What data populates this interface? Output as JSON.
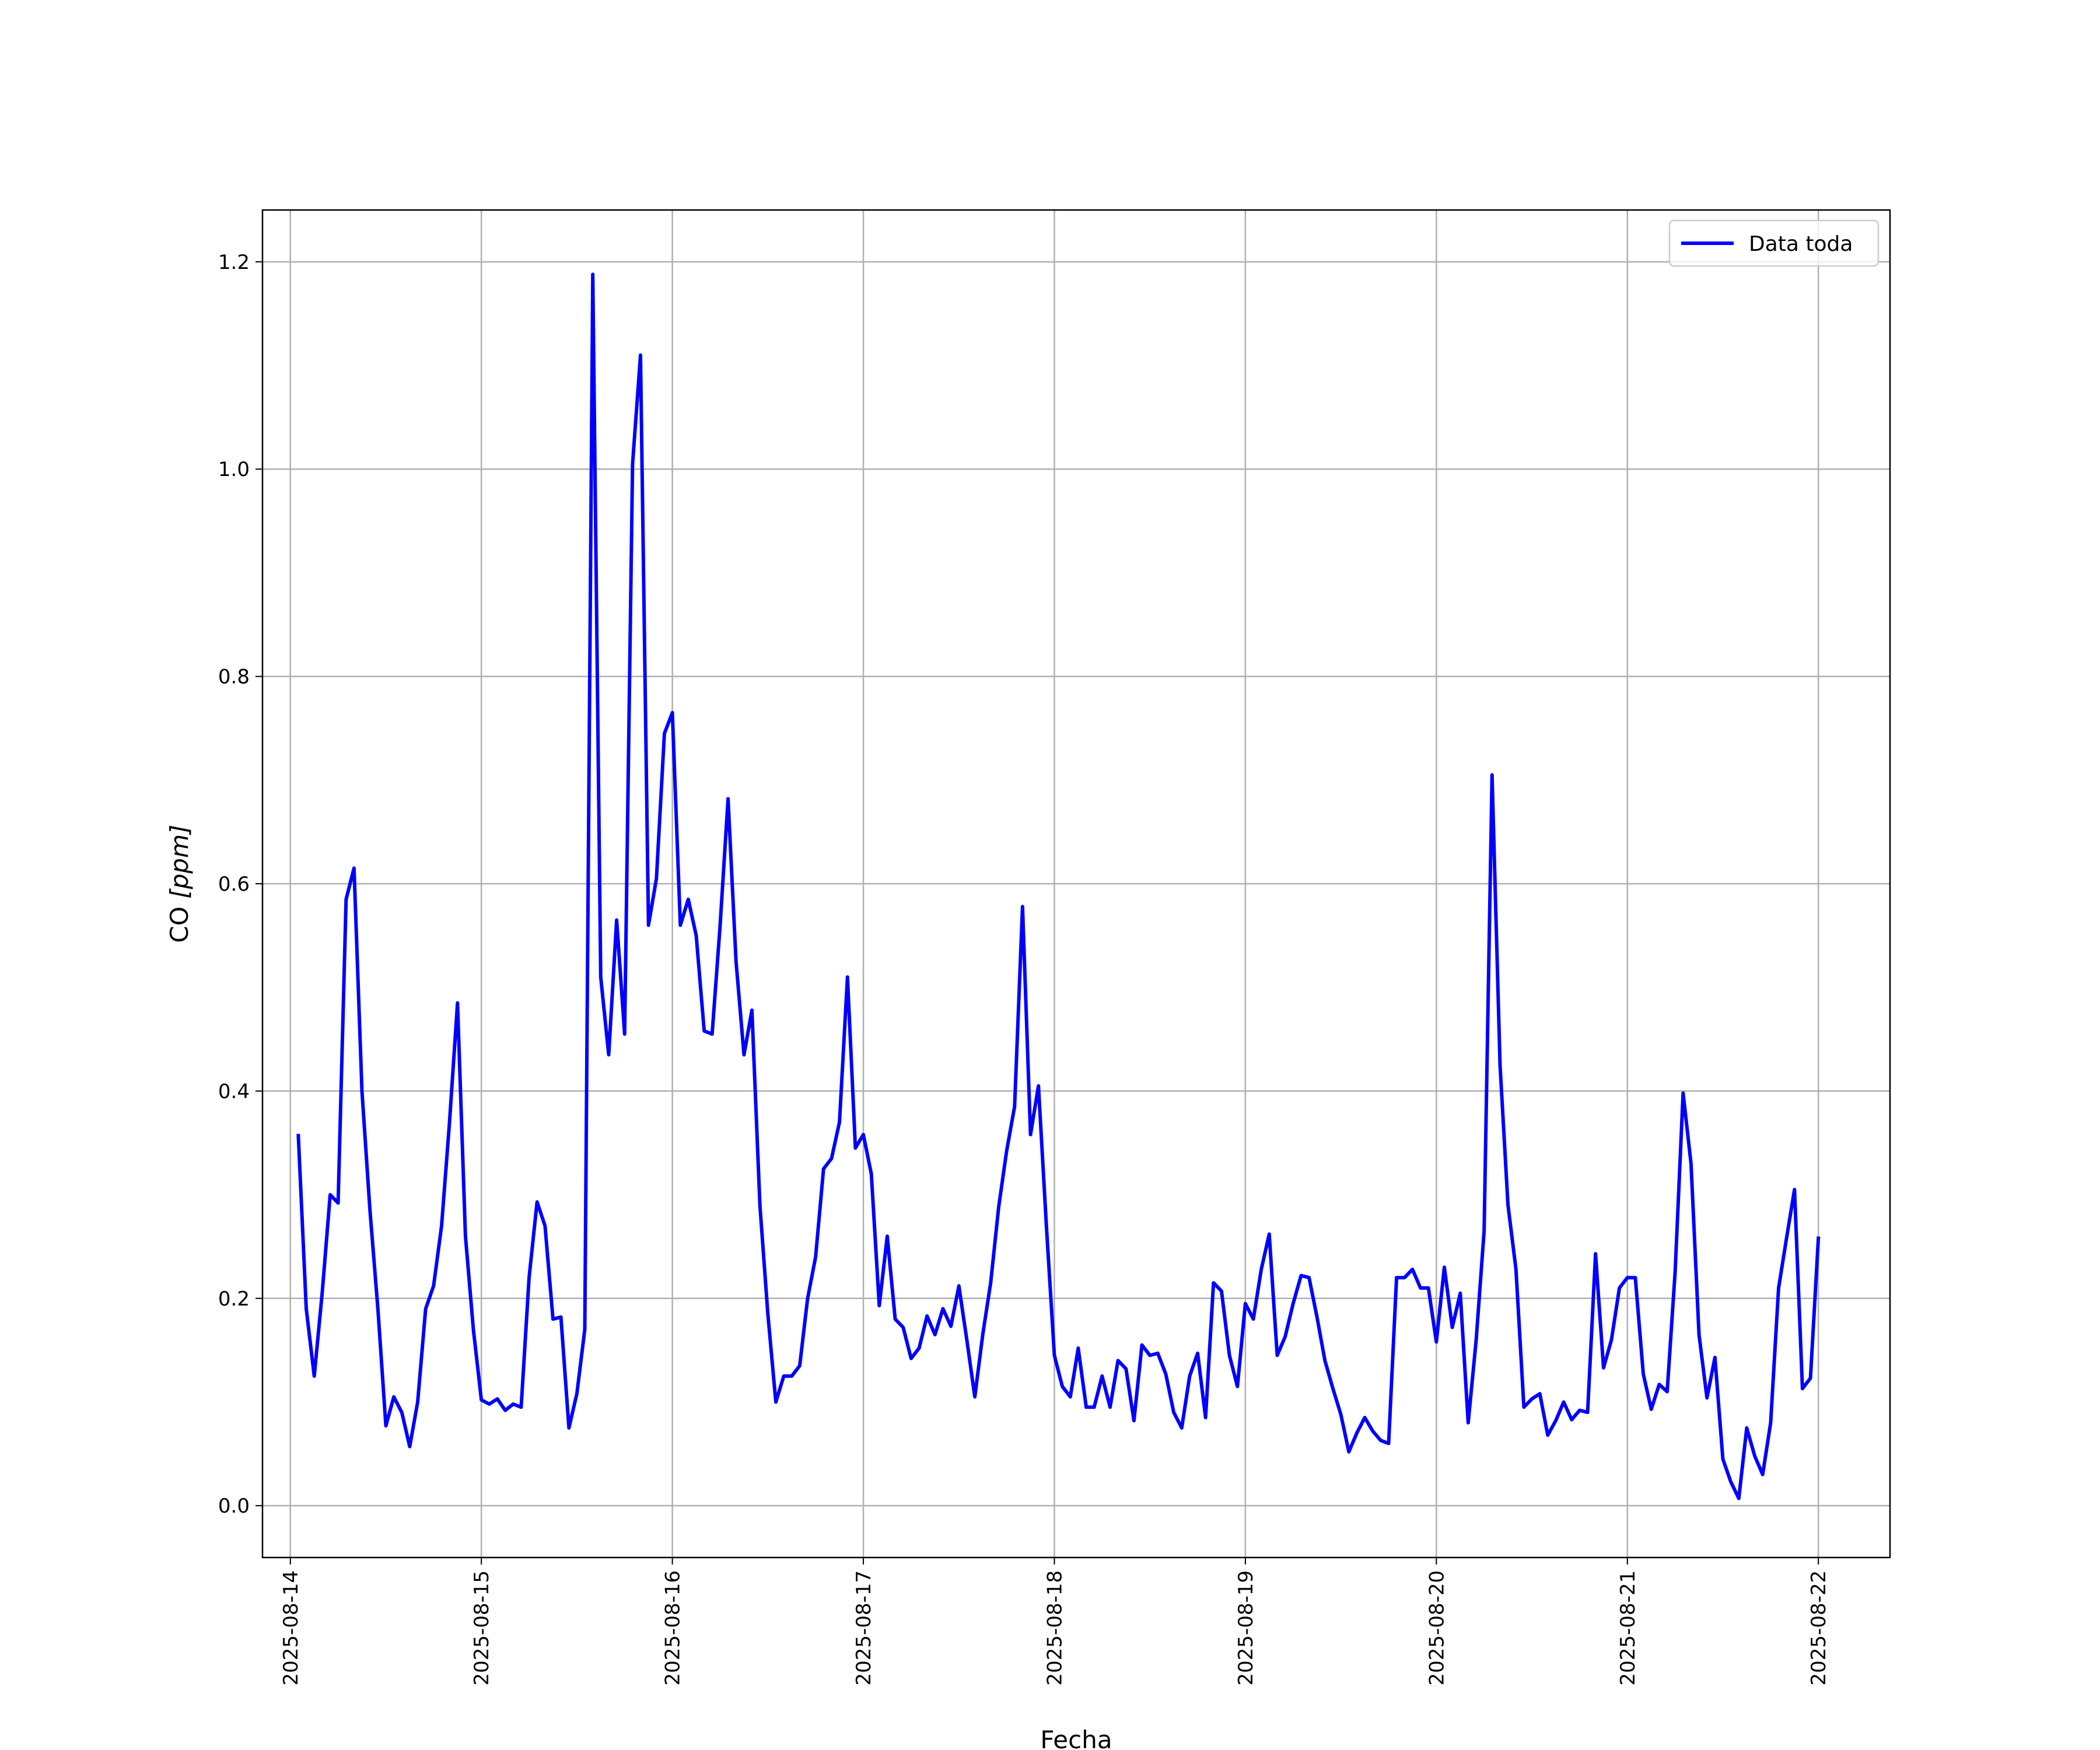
{
  "chart_data": {
    "type": "line",
    "xlabel": "Fecha",
    "ylabel_main": "CO ",
    "ylabel_unit": "[ppm]",
    "ylim": [
      -0.05,
      1.25
    ],
    "yticks": [
      0.0,
      0.2,
      0.4,
      0.6,
      0.8,
      1.0,
      1.2
    ],
    "ytick_labels": [
      "0.0",
      "0.2",
      "0.4",
      "0.6",
      "0.8",
      "1.0",
      "1.2"
    ],
    "xlim": [
      "2025-08-13T20:30",
      "2025-08-22T09:00"
    ],
    "xticks": [
      "2025-08-14",
      "2025-08-15",
      "2025-08-16",
      "2025-08-17",
      "2025-08-18",
      "2025-08-19",
      "2025-08-20",
      "2025-08-21",
      "2025-08-22"
    ],
    "grid": true,
    "legend_position": "top-right",
    "series": [
      {
        "name": "Data toda",
        "color": "#0000ff",
        "x": [
          "2025-08-14T01:00",
          "2025-08-14T02:00",
          "2025-08-14T03:00",
          "2025-08-14T04:00",
          "2025-08-14T05:00",
          "2025-08-14T06:00",
          "2025-08-14T07:00",
          "2025-08-14T08:00",
          "2025-08-14T09:00",
          "2025-08-14T10:00",
          "2025-08-14T11:00",
          "2025-08-14T12:00",
          "2025-08-14T13:00",
          "2025-08-14T14:00",
          "2025-08-14T15:00",
          "2025-08-14T16:00",
          "2025-08-14T17:00",
          "2025-08-14T18:00",
          "2025-08-14T19:00",
          "2025-08-14T20:00",
          "2025-08-14T21:00",
          "2025-08-14T22:00",
          "2025-08-14T23:00",
          "2025-08-15T00:00",
          "2025-08-15T01:00",
          "2025-08-15T02:00",
          "2025-08-15T03:00",
          "2025-08-15T04:00",
          "2025-08-15T05:00",
          "2025-08-15T06:00",
          "2025-08-15T07:00",
          "2025-08-15T08:00",
          "2025-08-15T09:00",
          "2025-08-15T10:00",
          "2025-08-15T11:00",
          "2025-08-15T12:00",
          "2025-08-15T13:00",
          "2025-08-15T14:00",
          "2025-08-15T15:00",
          "2025-08-15T16:00",
          "2025-08-15T17:00",
          "2025-08-15T18:00",
          "2025-08-15T19:00",
          "2025-08-15T20:00",
          "2025-08-15T21:00",
          "2025-08-15T22:00",
          "2025-08-15T23:00",
          "2025-08-16T00:00",
          "2025-08-16T01:00",
          "2025-08-16T02:00",
          "2025-08-16T03:00",
          "2025-08-16T04:00",
          "2025-08-16T05:00",
          "2025-08-16T06:00",
          "2025-08-16T07:00",
          "2025-08-16T08:00",
          "2025-08-16T09:00",
          "2025-08-16T10:00",
          "2025-08-16T11:00",
          "2025-08-16T12:00",
          "2025-08-16T13:00",
          "2025-08-16T14:00",
          "2025-08-16T15:00",
          "2025-08-16T16:00",
          "2025-08-16T17:00",
          "2025-08-16T18:00",
          "2025-08-16T19:00",
          "2025-08-16T20:00",
          "2025-08-16T21:00",
          "2025-08-16T22:00",
          "2025-08-16T23:00",
          "2025-08-17T00:00",
          "2025-08-17T01:00",
          "2025-08-17T02:00",
          "2025-08-17T03:00",
          "2025-08-17T04:00",
          "2025-08-17T05:00",
          "2025-08-17T06:00",
          "2025-08-17T07:00",
          "2025-08-17T08:00",
          "2025-08-17T09:00",
          "2025-08-17T10:00",
          "2025-08-17T11:00",
          "2025-08-17T12:00",
          "2025-08-17T13:00",
          "2025-08-17T14:00",
          "2025-08-17T15:00",
          "2025-08-17T16:00",
          "2025-08-17T17:00",
          "2025-08-17T18:00",
          "2025-08-17T19:00",
          "2025-08-17T20:00",
          "2025-08-17T21:00",
          "2025-08-17T22:00",
          "2025-08-17T23:00",
          "2025-08-18T00:00",
          "2025-08-18T01:00",
          "2025-08-18T02:00",
          "2025-08-18T03:00",
          "2025-08-18T04:00",
          "2025-08-18T05:00",
          "2025-08-18T06:00",
          "2025-08-18T07:00",
          "2025-08-18T08:00",
          "2025-08-18T09:00",
          "2025-08-18T10:00",
          "2025-08-18T11:00",
          "2025-08-18T12:00",
          "2025-08-18T13:00",
          "2025-08-18T14:00",
          "2025-08-18T15:00",
          "2025-08-18T16:00",
          "2025-08-18T17:00",
          "2025-08-18T18:00",
          "2025-08-18T19:00",
          "2025-08-18T20:00",
          "2025-08-18T21:00",
          "2025-08-18T22:00",
          "2025-08-18T23:00",
          "2025-08-19T00:00",
          "2025-08-19T01:00",
          "2025-08-19T02:00",
          "2025-08-19T03:00",
          "2025-08-19T04:00",
          "2025-08-19T05:00",
          "2025-08-19T06:00",
          "2025-08-19T07:00",
          "2025-08-19T08:00",
          "2025-08-19T09:00",
          "2025-08-19T10:00",
          "2025-08-19T11:00",
          "2025-08-19T12:00",
          "2025-08-19T13:00",
          "2025-08-19T14:00",
          "2025-08-19T15:00",
          "2025-08-19T16:00",
          "2025-08-19T17:00",
          "2025-08-19T18:00",
          "2025-08-19T19:00",
          "2025-08-19T20:00",
          "2025-08-19T21:00",
          "2025-08-19T22:00",
          "2025-08-19T23:00",
          "2025-08-20T00:00",
          "2025-08-20T01:00",
          "2025-08-20T02:00",
          "2025-08-20T03:00",
          "2025-08-20T04:00",
          "2025-08-20T05:00",
          "2025-08-20T06:00",
          "2025-08-20T07:00",
          "2025-08-20T08:00",
          "2025-08-20T09:00",
          "2025-08-20T10:00",
          "2025-08-20T11:00",
          "2025-08-20T12:00",
          "2025-08-20T13:00",
          "2025-08-20T14:00",
          "2025-08-20T15:00",
          "2025-08-20T16:00",
          "2025-08-20T17:00",
          "2025-08-20T18:00",
          "2025-08-20T19:00",
          "2025-08-20T20:00",
          "2025-08-20T21:00",
          "2025-08-20T22:00",
          "2025-08-20T23:00",
          "2025-08-21T00:00",
          "2025-08-21T01:00",
          "2025-08-21T02:00",
          "2025-08-21T03:00",
          "2025-08-21T04:00",
          "2025-08-21T05:00",
          "2025-08-21T06:00",
          "2025-08-21T07:00",
          "2025-08-21T08:00",
          "2025-08-21T09:00",
          "2025-08-21T10:00",
          "2025-08-21T11:00",
          "2025-08-21T12:00",
          "2025-08-21T13:00",
          "2025-08-21T14:00",
          "2025-08-21T15:00",
          "2025-08-21T16:00",
          "2025-08-21T17:00",
          "2025-08-21T18:00",
          "2025-08-21T19:00",
          "2025-08-21T20:00",
          "2025-08-21T21:00",
          "2025-08-21T22:00",
          "2025-08-21T23:00",
          "2025-08-22T00:00"
        ],
        "y": [
          0.357,
          0.19,
          0.125,
          0.205,
          0.3,
          0.292,
          0.585,
          0.615,
          0.4,
          0.285,
          0.19,
          0.077,
          0.105,
          0.09,
          0.057,
          0.1,
          0.19,
          0.212,
          0.27,
          0.37,
          0.485,
          0.26,
          0.17,
          0.102,
          0.098,
          0.103,
          0.092,
          0.098,
          0.095,
          0.22,
          0.293,
          0.27,
          0.18,
          0.182,
          0.075,
          0.108,
          0.17,
          1.188,
          0.51,
          0.435,
          0.565,
          0.455,
          1.005,
          1.11,
          0.56,
          0.605,
          0.745,
          0.765,
          0.56,
          0.585,
          0.55,
          0.458,
          0.455,
          0.56,
          0.682,
          0.525,
          0.435,
          0.478,
          0.29,
          0.185,
          0.1,
          0.125,
          0.125,
          0.135,
          0.2,
          0.24,
          0.325,
          0.335,
          0.37,
          0.51,
          0.345,
          0.358,
          0.32,
          0.193,
          0.26,
          0.18,
          0.172,
          0.142,
          0.152,
          0.183,
          0.165,
          0.19,
          0.173,
          0.212,
          0.16,
          0.105,
          0.165,
          0.215,
          0.288,
          0.342,
          0.385,
          0.578,
          0.358,
          0.405,
          0.27,
          0.145,
          0.115,
          0.105,
          0.152,
          0.095,
          0.095,
          0.125,
          0.095,
          0.14,
          0.132,
          0.082,
          0.155,
          0.145,
          0.147,
          0.127,
          0.09,
          0.075,
          0.125,
          0.147,
          0.085,
          0.215,
          0.207,
          0.145,
          0.115,
          0.195,
          0.18,
          0.228,
          0.262,
          0.145,
          0.163,
          0.195,
          0.222,
          0.22,
          0.182,
          0.14,
          0.113,
          0.088,
          0.052,
          0.07,
          0.085,
          0.072,
          0.063,
          0.06,
          0.22,
          0.22,
          0.228,
          0.21,
          0.21,
          0.158,
          0.23,
          0.172,
          0.205,
          0.08,
          0.16,
          0.265,
          0.705,
          0.425,
          0.29,
          0.228,
          0.095,
          0.103,
          0.108,
          0.068,
          0.082,
          0.1,
          0.083,
          0.092,
          0.09,
          0.243,
          0.133,
          0.16,
          0.21,
          0.22,
          0.22,
          0.127,
          0.093,
          0.117,
          0.11,
          0.225,
          0.398,
          0.33,
          0.165,
          0.104,
          0.143,
          0.045,
          0.023,
          0.007,
          0.075,
          0.048,
          0.03,
          0.08,
          0.21,
          0.258,
          0.305,
          0.113,
          0.123,
          0.258
        ]
      }
    ]
  }
}
